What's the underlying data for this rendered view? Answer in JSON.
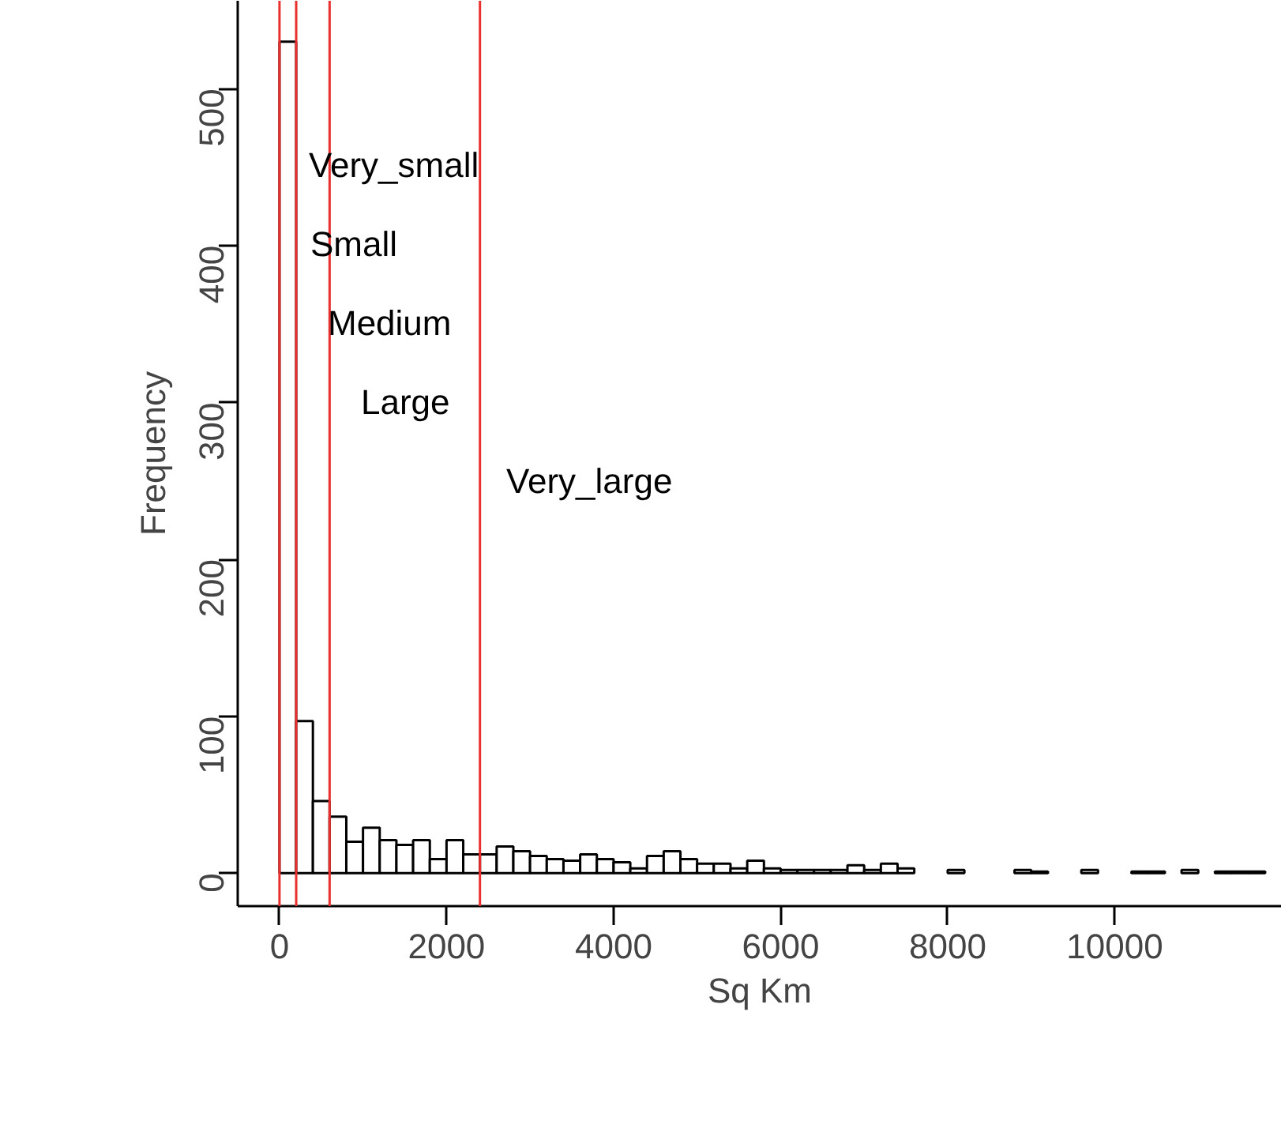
{
  "chart_data": {
    "type": "histogram",
    "xlabel": "Sq Km",
    "ylabel": "Frequency",
    "bins": [
      0,
      200,
      400,
      600,
      800,
      1000,
      1200,
      1400,
      1600,
      1800,
      2000,
      2200,
      2400,
      2600,
      2800,
      3000,
      3200,
      3400,
      3600,
      3800,
      4000,
      4200,
      4400,
      4600,
      4800,
      5000,
      5200,
      5400,
      5600,
      5800,
      6000,
      6200,
      6400,
      6600,
      6800,
      7000,
      7200,
      7400,
      7600,
      7800,
      8000,
      8200,
      8400,
      8600,
      8800,
      9000,
      9200,
      9400,
      9600,
      9800,
      10000,
      10200,
      10400,
      10600,
      10800,
      11000,
      11200,
      11400,
      11600,
      11800
    ],
    "values": [
      530,
      97,
      46,
      36,
      20,
      29,
      21,
      18,
      21,
      9,
      21,
      12,
      12,
      17,
      14,
      11,
      9,
      8,
      12,
      9,
      7,
      3,
      11,
      14,
      9,
      6,
      6,
      3,
      8,
      3,
      2,
      2,
      2,
      2,
      5,
      2,
      6,
      3,
      0,
      0,
      2,
      0,
      0,
      0,
      2,
      1,
      0,
      0,
      2,
      0,
      0,
      1,
      1,
      0,
      2,
      0,
      1,
      1,
      1
    ],
    "color": "#ffffff",
    "xlim": [
      -500,
      12000
    ],
    "ylim": [
      -21,
      556
    ],
    "xticks": [
      0,
      2000,
      4000,
      6000,
      8000,
      10000
    ],
    "yticks": [
      0,
      100,
      200,
      300,
      400,
      500
    ],
    "ref_lines": [
      {
        "axis": "x",
        "value": 0,
        "color": "#e8312f"
      },
      {
        "axis": "x",
        "value": 200,
        "color": "#e8312f"
      },
      {
        "axis": "x",
        "value": 600,
        "color": "#e8312f"
      },
      {
        "axis": "x",
        "value": 2400,
        "color": "#e8312f"
      }
    ],
    "annotations": [
      "Very_small",
      "Small",
      "Medium",
      "Large",
      "Very_large"
    ],
    "grid": false
  }
}
